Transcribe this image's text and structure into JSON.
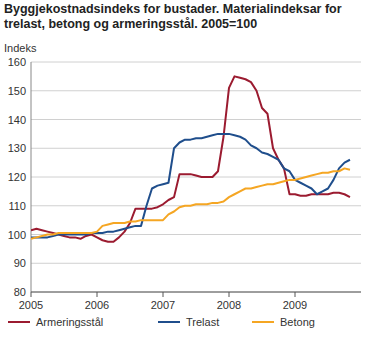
{
  "chart_data": {
    "type": "line",
    "title": "Byggjekostnadsindeks for bustader. Materialindeksar for trelast, betong og armeringsstål. 2005=100",
    "y_label": "Indeks",
    "x": [
      2005.0,
      2005.083,
      2005.167,
      2005.25,
      2005.333,
      2005.417,
      2005.5,
      2005.583,
      2005.667,
      2005.75,
      2005.833,
      2005.917,
      2006.0,
      2006.083,
      2006.167,
      2006.25,
      2006.333,
      2006.417,
      2006.5,
      2006.583,
      2006.667,
      2006.75,
      2006.833,
      2006.917,
      2007.0,
      2007.083,
      2007.167,
      2007.25,
      2007.333,
      2007.417,
      2007.5,
      2007.583,
      2007.667,
      2007.75,
      2007.833,
      2007.917,
      2008.0,
      2008.083,
      2008.167,
      2008.25,
      2008.333,
      2008.417,
      2008.5,
      2008.583,
      2008.667,
      2008.75,
      2008.833,
      2008.917,
      2009.0,
      2009.083,
      2009.167,
      2009.25,
      2009.333,
      2009.417,
      2009.5,
      2009.583,
      2009.667,
      2009.75,
      2009.833
    ],
    "series": [
      {
        "name": "Armeringsstål",
        "color": "#9b1b30",
        "values": [
          101.5,
          102,
          101.5,
          101,
          100.5,
          100,
          99.5,
          99,
          99,
          98.5,
          99.5,
          100,
          99,
          98,
          97.5,
          97.5,
          99,
          101,
          104,
          109,
          109,
          109,
          109,
          109.5,
          110.5,
          112,
          113,
          121,
          121,
          121,
          120.5,
          120,
          120,
          120,
          122,
          134,
          151,
          155,
          154.5,
          154,
          153,
          150,
          144,
          142,
          130,
          126,
          123,
          114,
          114,
          113.5,
          113.5,
          114,
          114,
          114,
          114,
          114.5,
          114.5,
          114,
          113
        ]
      },
      {
        "name": "Trelast",
        "color": "#1f4e8c",
        "values": [
          99,
          99,
          99,
          99,
          99.5,
          100,
          100,
          100,
          100,
          100,
          100,
          100.5,
          100.5,
          100.5,
          101,
          101,
          101.5,
          102,
          102.5,
          103,
          103,
          110,
          116,
          117,
          117.5,
          118,
          130,
          132,
          133,
          133,
          133.5,
          133.5,
          134,
          134.5,
          135,
          135,
          135,
          134.5,
          134,
          133,
          131,
          130,
          128.5,
          128,
          127,
          126,
          123,
          122,
          119,
          118,
          117,
          116,
          114,
          115,
          116,
          119,
          123,
          125,
          126
        ]
      },
      {
        "name": "Betong",
        "color": "#f5a623",
        "values": [
          98.5,
          99,
          99.5,
          100,
          100,
          100.5,
          100.5,
          100.5,
          100.5,
          100.5,
          100.5,
          100.5,
          101,
          103,
          103.5,
          104,
          104,
          104,
          104.5,
          104.5,
          105,
          105,
          105,
          105,
          105,
          107,
          108,
          109.5,
          110,
          110,
          110.5,
          110.5,
          110.5,
          111,
          111,
          111.5,
          113,
          114,
          115,
          116,
          116,
          116.5,
          117,
          117.5,
          117.5,
          118,
          118.5,
          119,
          119,
          119.5,
          120,
          120.5,
          121,
          121.5,
          121.5,
          122,
          122,
          123,
          122.5
        ]
      }
    ],
    "xlim": [
      2005,
      2010
    ],
    "xticks": [
      2005,
      2006,
      2007,
      2008,
      2009
    ],
    "ylim": [
      80,
      160
    ],
    "yticks": [
      80,
      90,
      100,
      110,
      120,
      130,
      140,
      150,
      160
    ],
    "grid": true,
    "legend": "bottom"
  }
}
